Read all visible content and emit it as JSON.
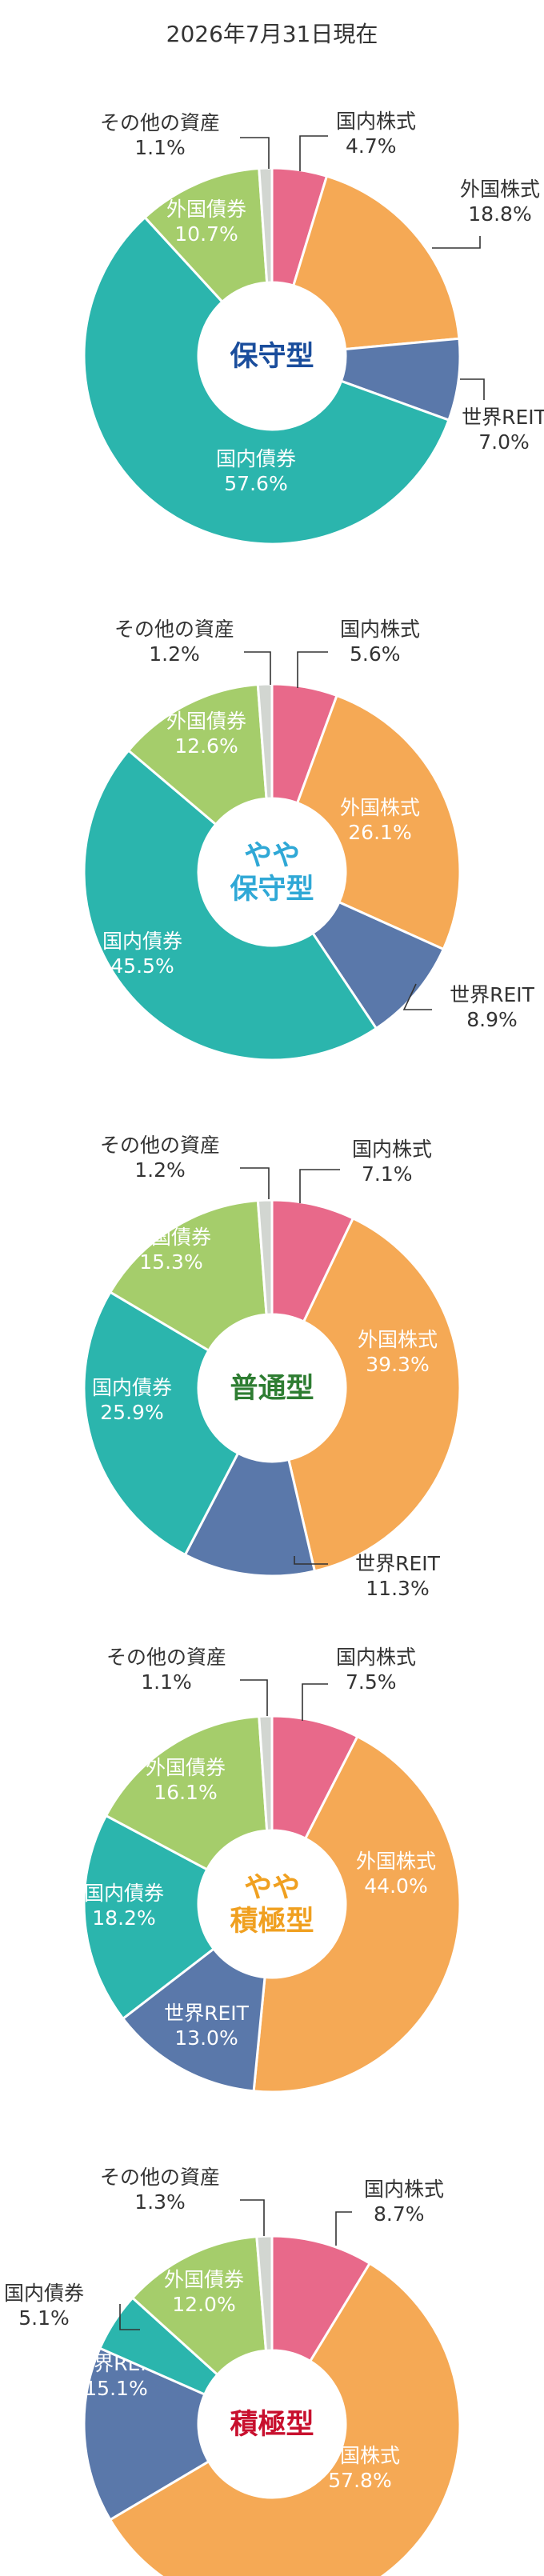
{
  "date_label": "2026年7月31日現在",
  "colors": {
    "domestic_stock": "#e8698a",
    "foreign_stock": "#f5a955",
    "world_reit": "#5a78aa",
    "domestic_bond": "#2bb5ad",
    "foreign_bond": "#a5cd6b",
    "other": "#d2d6d1"
  },
  "chart_data": [
    {
      "type": "pie",
      "title": "保守型",
      "title_color": "#1a4d9c",
      "slices": [
        {
          "key": "domestic_stock",
          "label": "国内株式",
          "value": 4.7,
          "value_label": "4.7%"
        },
        {
          "key": "foreign_stock",
          "label": "外国株式",
          "value": 18.8,
          "value_label": "18.8%"
        },
        {
          "key": "world_reit",
          "label": "世界REIT",
          "value": 7.0,
          "value_label": "7.0%"
        },
        {
          "key": "domestic_bond",
          "label": "国内債券",
          "value": 57.6,
          "value_label": "57.6%"
        },
        {
          "key": "foreign_bond",
          "label": "外国債券",
          "value": 10.7,
          "value_label": "10.7%"
        },
        {
          "key": "other",
          "label": "その他の資産",
          "value": 1.1,
          "value_label": "1.1%"
        }
      ]
    },
    {
      "type": "pie",
      "title": "やや\n保守型",
      "title_color": "#2fa8d6",
      "slices": [
        {
          "key": "domestic_stock",
          "label": "国内株式",
          "value": 5.6,
          "value_label": "5.6%"
        },
        {
          "key": "foreign_stock",
          "label": "外国株式",
          "value": 26.1,
          "value_label": "26.1%"
        },
        {
          "key": "world_reit",
          "label": "世界REIT",
          "value": 8.9,
          "value_label": "8.9%"
        },
        {
          "key": "domestic_bond",
          "label": "国内債券",
          "value": 45.5,
          "value_label": "45.5%"
        },
        {
          "key": "foreign_bond",
          "label": "外国債券",
          "value": 12.6,
          "value_label": "12.6%"
        },
        {
          "key": "other",
          "label": "その他の資産",
          "value": 1.2,
          "value_label": "1.2%"
        }
      ]
    },
    {
      "type": "pie",
      "title": "普通型",
      "title_color": "#2e7d32",
      "slices": [
        {
          "key": "domestic_stock",
          "label": "国内株式",
          "value": 7.1,
          "value_label": "7.1%"
        },
        {
          "key": "foreign_stock",
          "label": "外国株式",
          "value": 39.3,
          "value_label": "39.3%"
        },
        {
          "key": "world_reit",
          "label": "世界REIT",
          "value": 11.3,
          "value_label": "11.3%"
        },
        {
          "key": "domestic_bond",
          "label": "国内債券",
          "value": 25.9,
          "value_label": "25.9%"
        },
        {
          "key": "foreign_bond",
          "label": "外国債券",
          "value": 15.3,
          "value_label": "15.3%"
        },
        {
          "key": "other",
          "label": "その他の資産",
          "value": 1.2,
          "value_label": "1.2%"
        }
      ]
    },
    {
      "type": "pie",
      "title": "やや\n積極型",
      "title_color": "#f0a020",
      "slices": [
        {
          "key": "domestic_stock",
          "label": "国内株式",
          "value": 7.5,
          "value_label": "7.5%"
        },
        {
          "key": "foreign_stock",
          "label": "外国株式",
          "value": 44.0,
          "value_label": "44.0%"
        },
        {
          "key": "world_reit",
          "label": "世界REIT",
          "value": 13.0,
          "value_label": "13.0%"
        },
        {
          "key": "domestic_bond",
          "label": "国内債券",
          "value": 18.2,
          "value_label": "18.2%"
        },
        {
          "key": "foreign_bond",
          "label": "外国債券",
          "value": 16.1,
          "value_label": "16.1%"
        },
        {
          "key": "other",
          "label": "その他の資産",
          "value": 1.1,
          "value_label": "1.1%"
        }
      ]
    },
    {
      "type": "pie",
      "title": "積極型",
      "title_color": "#c8102e",
      "slices": [
        {
          "key": "domestic_stock",
          "label": "国内株式",
          "value": 8.7,
          "value_label": "8.7%"
        },
        {
          "key": "foreign_stock",
          "label": "外国株式",
          "value": 57.8,
          "value_label": "57.8%"
        },
        {
          "key": "world_reit",
          "label": "世界REIT",
          "value": 15.1,
          "value_label": "15.1%"
        },
        {
          "key": "domestic_bond",
          "label": "国内債券",
          "value": 5.1,
          "value_label": "5.1%"
        },
        {
          "key": "foreign_bond",
          "label": "外国債券",
          "value": 12.0,
          "value_label": "12.0%"
        },
        {
          "key": "other",
          "label": "その他の資産",
          "value": 1.3,
          "value_label": "1.3%"
        }
      ]
    }
  ]
}
